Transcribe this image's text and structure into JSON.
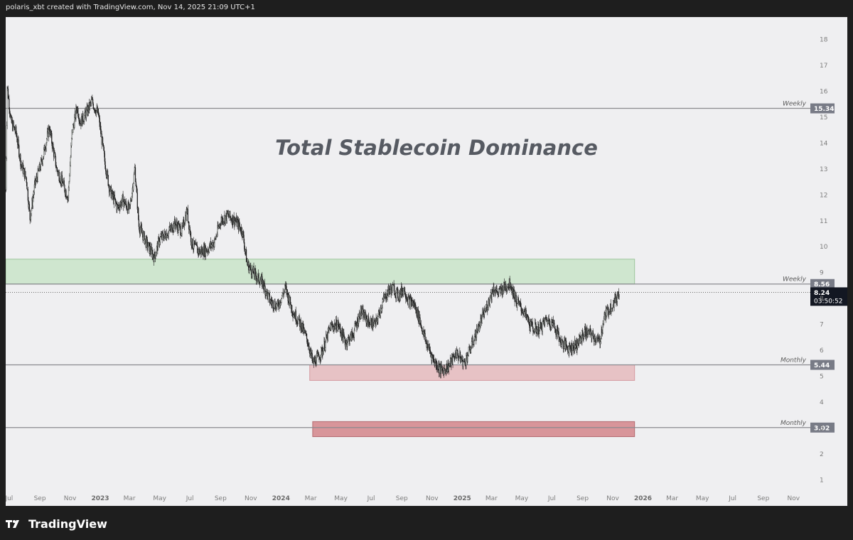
{
  "header": {
    "caption": "polaris_xbt created with TradingView.com, Nov 14, 2025 21:09 UTC+1"
  },
  "footer": {
    "brand": "TradingView",
    "logo_icon": "tradingview-logo-icon"
  },
  "chart_data": {
    "type": "candlestick",
    "title": "Total Stablecoin Dominance",
    "xlabel": "",
    "ylabel": "",
    "ylim": [
      0.6,
      18.7
    ],
    "y_ticks": [
      1,
      2,
      3,
      4,
      5,
      6,
      7,
      8,
      9,
      10,
      11,
      12,
      13,
      14,
      15,
      16,
      17,
      18
    ],
    "x_range": [
      "2022-06-24",
      "2026-12-05"
    ],
    "x_ticks": [
      {
        "date": "2022-07-01",
        "label": "Jul",
        "year": false
      },
      {
        "date": "2022-09-01",
        "label": "Sep",
        "year": false
      },
      {
        "date": "2022-11-01",
        "label": "Nov",
        "year": false
      },
      {
        "date": "2023-01-01",
        "label": "2023",
        "year": true
      },
      {
        "date": "2023-03-01",
        "label": "Mar",
        "year": false
      },
      {
        "date": "2023-05-01",
        "label": "May",
        "year": false
      },
      {
        "date": "2023-07-01",
        "label": "Jul",
        "year": false
      },
      {
        "date": "2023-09-01",
        "label": "Sep",
        "year": false
      },
      {
        "date": "2023-11-01",
        "label": "Nov",
        "year": false
      },
      {
        "date": "2024-01-01",
        "label": "2024",
        "year": true
      },
      {
        "date": "2024-03-01",
        "label": "Mar",
        "year": false
      },
      {
        "date": "2024-05-01",
        "label": "May",
        "year": false
      },
      {
        "date": "2024-07-01",
        "label": "Jul",
        "year": false
      },
      {
        "date": "2024-09-01",
        "label": "Sep",
        "year": false
      },
      {
        "date": "2024-11-01",
        "label": "Nov",
        "year": false
      },
      {
        "date": "2025-01-01",
        "label": "2025",
        "year": true
      },
      {
        "date": "2025-03-01",
        "label": "Mar",
        "year": false
      },
      {
        "date": "2025-05-01",
        "label": "May",
        "year": false
      },
      {
        "date": "2025-07-01",
        "label": "Jul",
        "year": false
      },
      {
        "date": "2025-09-01",
        "label": "Sep",
        "year": false
      },
      {
        "date": "2025-11-01",
        "label": "Nov",
        "year": false
      },
      {
        "date": "2026-01-01",
        "label": "2026",
        "year": true
      },
      {
        "date": "2026-03-01",
        "label": "Mar",
        "year": false
      },
      {
        "date": "2026-05-01",
        "label": "May",
        "year": false
      },
      {
        "date": "2026-07-01",
        "label": "Jul",
        "year": false
      },
      {
        "date": "2026-09-01",
        "label": "Sep",
        "year": false
      },
      {
        "date": "2026-11-01",
        "label": "Nov",
        "year": false
      }
    ],
    "series": [
      {
        "kind": "close_path_approx",
        "points": [
          [
            "2022-06-24",
            12.2
          ],
          [
            "2022-06-27",
            16.2
          ],
          [
            "2022-07-05",
            14.8
          ],
          [
            "2022-07-15",
            14.4
          ],
          [
            "2022-07-25",
            13.2
          ],
          [
            "2022-08-05",
            12.6
          ],
          [
            "2022-08-12",
            11.1
          ],
          [
            "2022-08-22",
            12.4
          ],
          [
            "2022-09-05",
            13.3
          ],
          [
            "2022-09-20",
            14.6
          ],
          [
            "2022-10-05",
            13.0
          ],
          [
            "2022-10-20",
            12.3
          ],
          [
            "2022-10-28",
            11.9
          ],
          [
            "2022-11-05",
            14.4
          ],
          [
            "2022-11-15",
            15.4
          ],
          [
            "2022-11-22",
            14.8
          ],
          [
            "2022-12-05",
            15.2
          ],
          [
            "2022-12-15",
            15.6
          ],
          [
            "2022-12-28",
            15.1
          ],
          [
            "2023-01-10",
            13.3
          ],
          [
            "2023-01-20",
            12.2
          ],
          [
            "2023-02-05",
            11.5
          ],
          [
            "2023-02-15",
            11.8
          ],
          [
            "2023-03-01",
            11.4
          ],
          [
            "2023-03-12",
            13.0
          ],
          [
            "2023-03-20",
            10.8
          ],
          [
            "2023-04-05",
            10.1
          ],
          [
            "2023-04-20",
            9.6
          ],
          [
            "2023-05-01",
            10.3
          ],
          [
            "2023-05-15",
            10.5
          ],
          [
            "2023-06-01",
            10.9
          ],
          [
            "2023-06-15",
            10.6
          ],
          [
            "2023-06-25",
            11.4
          ],
          [
            "2023-07-05",
            10.1
          ],
          [
            "2023-07-20",
            9.8
          ],
          [
            "2023-08-05",
            9.9
          ],
          [
            "2023-08-20",
            10.2
          ],
          [
            "2023-09-01",
            11.0
          ],
          [
            "2023-09-15",
            11.2
          ],
          [
            "2023-10-01",
            11.0
          ],
          [
            "2023-10-15",
            10.6
          ],
          [
            "2023-10-25",
            9.3
          ],
          [
            "2023-11-10",
            8.9
          ],
          [
            "2023-11-25",
            8.6
          ],
          [
            "2023-12-10",
            7.9
          ],
          [
            "2023-12-25",
            7.7
          ],
          [
            "2024-01-10",
            8.4
          ],
          [
            "2024-01-25",
            7.5
          ],
          [
            "2024-02-10",
            7.0
          ],
          [
            "2024-02-25",
            6.3
          ],
          [
            "2024-03-05",
            5.5
          ],
          [
            "2024-03-15",
            5.7
          ],
          [
            "2024-03-25",
            6.0
          ],
          [
            "2024-04-10",
            6.9
          ],
          [
            "2024-04-25",
            7.0
          ],
          [
            "2024-05-10",
            6.3
          ],
          [
            "2024-05-25",
            6.6
          ],
          [
            "2024-06-10",
            7.5
          ],
          [
            "2024-06-25",
            7.1
          ],
          [
            "2024-07-10",
            7.0
          ],
          [
            "2024-07-25",
            7.9
          ],
          [
            "2024-08-05",
            8.3
          ],
          [
            "2024-08-15",
            8.4
          ],
          [
            "2024-08-25",
            8.1
          ],
          [
            "2024-09-05",
            8.4
          ],
          [
            "2024-09-15",
            7.9
          ],
          [
            "2024-09-25",
            7.8
          ],
          [
            "2024-10-05",
            7.3
          ],
          [
            "2024-10-20",
            6.3
          ],
          [
            "2024-11-05",
            5.6
          ],
          [
            "2024-11-20",
            5.2
          ],
          [
            "2024-12-05",
            5.4
          ],
          [
            "2024-12-20",
            5.9
          ],
          [
            "2025-01-05",
            5.5
          ],
          [
            "2025-01-20",
            6.2
          ],
          [
            "2025-02-05",
            7.0
          ],
          [
            "2025-02-20",
            7.7
          ],
          [
            "2025-03-05",
            8.4
          ],
          [
            "2025-03-15",
            8.2
          ],
          [
            "2025-03-25",
            8.4
          ],
          [
            "2025-04-08",
            8.6
          ],
          [
            "2025-04-20",
            7.9
          ],
          [
            "2025-05-05",
            7.5
          ],
          [
            "2025-05-20",
            6.9
          ],
          [
            "2025-06-05",
            6.8
          ],
          [
            "2025-06-20",
            7.2
          ],
          [
            "2025-07-05",
            7.0
          ],
          [
            "2025-07-20",
            6.3
          ],
          [
            "2025-08-05",
            6.1
          ],
          [
            "2025-08-20",
            6.2
          ],
          [
            "2025-09-05",
            6.7
          ],
          [
            "2025-09-20",
            6.6
          ],
          [
            "2025-10-05",
            6.3
          ],
          [
            "2025-10-15",
            7.3
          ],
          [
            "2025-10-25",
            7.6
          ],
          [
            "2025-11-05",
            7.9
          ],
          [
            "2025-11-14",
            8.24
          ]
        ]
      }
    ],
    "levels": [
      {
        "value": 15.34,
        "label": "Weekly",
        "tag": "15.34"
      },
      {
        "value": 8.56,
        "label": "Weekly",
        "tag": "8.56"
      },
      {
        "value": 5.44,
        "label": "Monthly",
        "tag": "5.44"
      },
      {
        "value": 3.02,
        "label": "Monthly",
        "tag": "3.02"
      }
    ],
    "zones": [
      {
        "name": "supply-zone",
        "start": "2022-06-24",
        "end": "2025-12-15",
        "from": 8.56,
        "to": 9.52,
        "color": "#cfe6cf",
        "border": "#9cc59c"
      },
      {
        "name": "demand-zone",
        "start": "2024-02-28",
        "end": "2025-12-15",
        "from": 4.84,
        "to": 5.44,
        "color": "#e7c2c5",
        "border": "#d49aa0"
      },
      {
        "name": "deep-demand-zone",
        "start": "2024-03-05",
        "end": "2025-12-15",
        "from": 2.67,
        "to": 3.25,
        "color": "#d8959a",
        "border": "#b36a70"
      }
    ],
    "current_price": {
      "value": 8.24,
      "label": "8.24",
      "countdown": "03:50:52"
    },
    "colors": {
      "up": "#f3fbf3",
      "down": "#1c1c1c",
      "wick": "#1c1c1c",
      "level_line": "#8a8a8f",
      "tag_bg": "#787b86",
      "current_tag_bg": "#131722"
    }
  }
}
